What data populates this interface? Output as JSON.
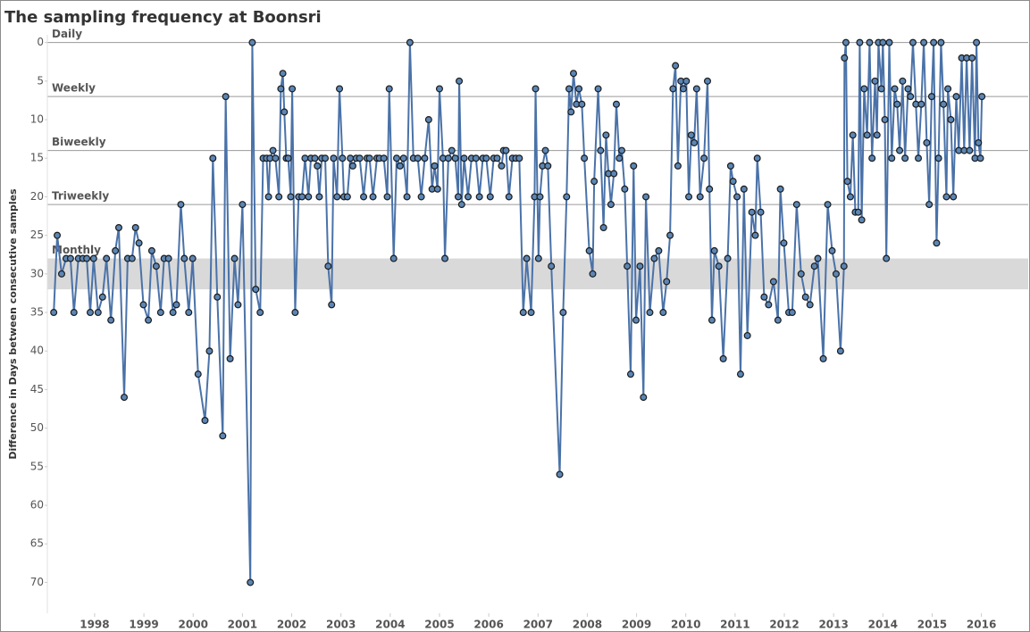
{
  "chart_data": {
    "type": "line",
    "title": "The sampling frequency at Boonsri",
    "y_label": "Difference in Days between consecutive samples",
    "invert_y": true,
    "color": "#4a72a8",
    "marker_color": "#5b86b5",
    "xlim": [
      1997.04,
      2016.95
    ],
    "xticks": [
      1998,
      1999,
      2000,
      2001,
      2002,
      2003,
      2004,
      2005,
      2006,
      2007,
      2008,
      2009,
      2010,
      2011,
      2012,
      2013,
      2014,
      2015,
      2016
    ],
    "ylim": [
      -1,
      74
    ],
    "yticks": [
      0,
      5,
      10,
      15,
      20,
      25,
      30,
      35,
      40,
      45,
      50,
      55,
      60,
      65,
      70
    ],
    "reference_lines": [
      {
        "label": "Daily",
        "value": 0
      },
      {
        "label": "Weekly",
        "value": 7
      },
      {
        "label": "Biweekly",
        "value": 14
      },
      {
        "label": "Triweekly",
        "value": 21
      }
    ],
    "reference_band": {
      "label": "Monthly",
      "from": 28,
      "to": 32
    },
    "x": [
      1997.17,
      1997.24,
      1997.33,
      1997.42,
      1997.51,
      1997.58,
      1997.67,
      1997.76,
      1997.84,
      1997.91,
      1997.98,
      1998.07,
      1998.16,
      1998.24,
      1998.33,
      1998.42,
      1998.49,
      1998.6,
      1998.67,
      1998.76,
      1998.83,
      1998.9,
      1998.99,
      1999.09,
      1999.16,
      1999.25,
      1999.34,
      1999.41,
      1999.5,
      1999.59,
      1999.66,
      1999.75,
      1999.82,
      1999.91,
      1999.99,
      2000.1,
      2000.24,
      2000.33,
      2000.4,
      2000.49,
      2000.6,
      2000.66,
      2000.75,
      2000.84,
      2000.91,
      2001.0,
      2001.16,
      2001.2,
      2001.27,
      2001.36,
      2001.42,
      2001.49,
      2001.53,
      2001.56,
      2001.62,
      2001.67,
      2001.74,
      2001.78,
      2001.82,
      2001.85,
      2001.89,
      2001.93,
      2001.98,
      2002.01,
      2002.07,
      2002.14,
      2002.21,
      2002.27,
      2002.34,
      2002.39,
      2002.47,
      2002.52,
      2002.56,
      2002.61,
      2002.68,
      2002.74,
      2002.81,
      2002.85,
      2002.92,
      2002.97,
      2003.03,
      2003.06,
      2003.13,
      2003.19,
      2003.24,
      2003.31,
      2003.38,
      2003.46,
      2003.53,
      2003.58,
      2003.65,
      2003.73,
      2003.78,
      2003.87,
      2003.94,
      2003.98,
      2004.07,
      2004.13,
      2004.2,
      2004.27,
      2004.34,
      2004.4,
      2004.47,
      2004.56,
      2004.63,
      2004.7,
      2004.78,
      2004.85,
      2004.9,
      2004.96,
      2005.0,
      2005.07,
      2005.11,
      2005.18,
      2005.25,
      2005.32,
      2005.38,
      2005.4,
      2005.45,
      2005.5,
      2005.58,
      2005.65,
      2005.74,
      2005.81,
      2005.88,
      2005.95,
      2006.03,
      2006.1,
      2006.17,
      2006.26,
      2006.3,
      2006.35,
      2006.41,
      2006.48,
      2006.55,
      2006.62,
      2006.7,
      2006.77,
      2006.86,
      2006.93,
      2006.95,
      2007.01,
      2007.04,
      2007.09,
      2007.15,
      2007.2,
      2007.27,
      2007.44,
      2007.51,
      2007.58,
      2007.63,
      2007.67,
      2007.72,
      2007.78,
      2007.83,
      2007.89,
      2007.94,
      2008.04,
      2008.11,
      2008.14,
      2008.22,
      2008.27,
      2008.33,
      2008.38,
      2008.43,
      2008.48,
      2008.54,
      2008.59,
      2008.65,
      2008.7,
      2008.76,
      2008.81,
      2008.88,
      2008.94,
      2008.99,
      2009.07,
      2009.14,
      2009.19,
      2009.27,
      2009.36,
      2009.45,
      2009.54,
      2009.61,
      2009.68,
      2009.74,
      2009.79,
      2009.84,
      2009.9,
      2009.95,
      2010.01,
      2010.06,
      2010.11,
      2010.17,
      2010.22,
      2010.29,
      2010.37,
      2010.44,
      2010.48,
      2010.53,
      2010.58,
      2010.67,
      2010.76,
      2010.85,
      2010.91,
      2010.96,
      2011.04,
      2011.11,
      2011.18,
      2011.25,
      2011.34,
      2011.41,
      2011.45,
      2011.52,
      2011.59,
      2011.68,
      2011.78,
      2011.87,
      2011.92,
      2011.99,
      2012.09,
      2012.16,
      2012.25,
      2012.34,
      2012.43,
      2012.52,
      2012.61,
      2012.68,
      2012.79,
      2012.88,
      2012.97,
      2013.05,
      2013.14,
      2013.21,
      2013.22,
      2013.25,
      2013.28,
      2013.34,
      2013.39,
      2013.44,
      2013.5,
      2013.53,
      2013.57,
      2013.62,
      2013.68,
      2013.73,
      2013.78,
      2013.84,
      2013.88,
      2013.91,
      2013.97,
      2014.0,
      2014.04,
      2014.07,
      2014.13,
      2014.18,
      2014.24,
      2014.29,
      2014.34,
      2014.4,
      2014.45,
      2014.51,
      2014.56,
      2014.61,
      2014.67,
      2014.72,
      2014.78,
      2014.83,
      2014.89,
      2014.94,
      2014.99,
      2015.03,
      2015.09,
      2015.13,
      2015.18,
      2015.23,
      2015.29,
      2015.32,
      2015.38,
      2015.43,
      2015.49,
      2015.54,
      2015.6,
      2015.65,
      2015.7,
      2015.76,
      2015.81,
      2015.87,
      2015.9,
      2015.94,
      2015.98,
      2016.01
    ],
    "values": [
      35,
      25,
      30,
      28,
      28,
      35,
      28,
      28,
      28,
      35,
      28,
      35,
      33,
      28,
      36,
      27,
      24,
      46,
      28,
      28,
      24,
      26,
      34,
      36,
      27,
      29,
      35,
      28,
      28,
      35,
      34,
      21,
      28,
      35,
      28,
      43,
      49,
      40,
      15,
      33,
      51,
      7,
      41,
      28,
      34,
      21,
      70,
      0,
      32,
      35,
      15,
      15,
      20,
      15,
      14,
      15,
      20,
      6,
      4,
      9,
      15,
      15,
      20,
      6,
      35,
      20,
      20,
      15,
      20,
      15,
      15,
      16,
      20,
      15,
      15,
      29,
      34,
      15,
      20,
      6,
      15,
      20,
      20,
      15,
      16,
      15,
      15,
      20,
      15,
      15,
      20,
      15,
      15,
      15,
      20,
      6,
      28,
      15,
      16,
      15,
      20,
      0,
      15,
      15,
      20,
      15,
      10,
      19,
      16,
      19,
      6,
      15,
      28,
      15,
      14,
      15,
      20,
      5,
      21,
      15,
      20,
      15,
      15,
      20,
      15,
      15,
      20,
      15,
      15,
      16,
      14,
      14,
      20,
      15,
      15,
      15,
      35,
      28,
      35,
      20,
      6,
      28,
      20,
      16,
      14,
      16,
      29,
      56,
      35,
      20,
      6,
      9,
      4,
      8,
      6,
      8,
      15,
      27,
      30,
      18,
      6,
      14,
      24,
      12,
      17,
      21,
      17,
      8,
      15,
      14,
      19,
      29,
      43,
      16,
      36,
      29,
      46,
      20,
      35,
      28,
      27,
      35,
      31,
      25,
      6,
      3,
      16,
      5,
      6,
      5,
      20,
      12,
      13,
      6,
      20,
      15,
      5,
      19,
      36,
      27,
      29,
      41,
      28,
      16,
      18,
      20,
      43,
      19,
      38,
      22,
      25,
      15,
      22,
      33,
      34,
      31,
      36,
      19,
      26,
      35,
      35,
      21,
      30,
      33,
      34,
      29,
      28,
      41,
      21,
      27,
      30,
      40,
      29,
      2,
      0,
      18,
      20,
      12,
      22,
      22,
      0,
      23,
      6,
      12,
      0,
      15,
      5,
      12,
      0,
      6,
      0,
      10,
      28,
      0,
      15,
      6,
      8,
      14,
      5,
      15,
      6,
      7,
      0,
      8,
      15,
      8,
      0,
      13,
      21,
      7,
      0,
      26,
      15,
      0,
      8,
      20,
      6,
      10,
      20,
      7,
      14,
      2,
      14,
      2,
      14,
      2,
      15,
      0,
      13,
      15,
      7
    ]
  }
}
